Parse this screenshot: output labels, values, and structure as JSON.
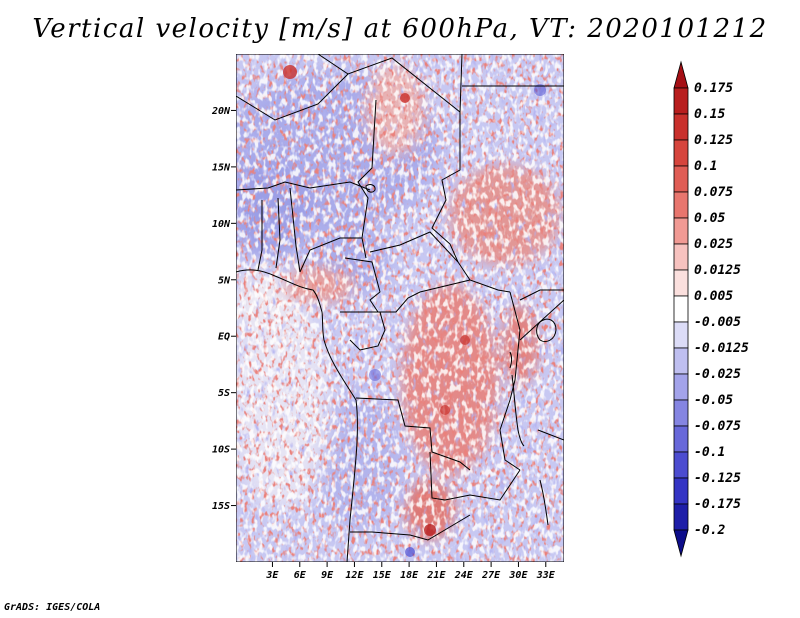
{
  "title": "Vertical velocity [m/s] at 600hPa, VT: 2020101212",
  "credit": "GrADS: IGES/COLA",
  "map": {
    "lon_range": [
      -1,
      35
    ],
    "lat_range": [
      -20,
      25
    ],
    "lat_labels": [
      {
        "lat": 20,
        "label": "20N"
      },
      {
        "lat": 15,
        "label": "15N"
      },
      {
        "lat": 10,
        "label": "10N"
      },
      {
        "lat": 5,
        "label": "5N"
      },
      {
        "lat": 0,
        "label": "EQ"
      },
      {
        "lat": -5,
        "label": "5S"
      },
      {
        "lat": -10,
        "label": "10S"
      },
      {
        "lat": -15,
        "label": "15S"
      }
    ],
    "lon_labels": [
      {
        "lon": 3,
        "label": "3E"
      },
      {
        "lon": 6,
        "label": "6E"
      },
      {
        "lon": 9,
        "label": "9E"
      },
      {
        "lon": 12,
        "label": "12E"
      },
      {
        "lon": 15,
        "label": "15E"
      },
      {
        "lon": 18,
        "label": "18E"
      },
      {
        "lon": 21,
        "label": "21E"
      },
      {
        "lon": 24,
        "label": "24E"
      },
      {
        "lon": 27,
        "label": "27E"
      },
      {
        "lon": 30,
        "label": "30E"
      },
      {
        "lon": 33,
        "label": "33E"
      }
    ]
  },
  "colorbar": {
    "labels": [
      "0.175",
      "0.15",
      "0.125",
      "0.1",
      "0.075",
      "0.05",
      "0.025",
      "0.0125",
      "0.005",
      "-0.005",
      "-0.0125",
      "-0.025",
      "-0.05",
      "-0.075",
      "-0.1",
      "-0.125",
      "-0.175",
      "-0.2"
    ],
    "colors": [
      "#a50f15",
      "#b81e1e",
      "#c9302c",
      "#d6453d",
      "#e05d55",
      "#e8766e",
      "#f19a94",
      "#f7c2bf",
      "#fbe0de",
      "#ffffff",
      "#dcdcf7",
      "#bfbff0",
      "#a3a3ea",
      "#8585e2",
      "#6868da",
      "#4c4cd0",
      "#3434c4",
      "#1e1ea8",
      "#0d0d8a"
    ]
  }
}
